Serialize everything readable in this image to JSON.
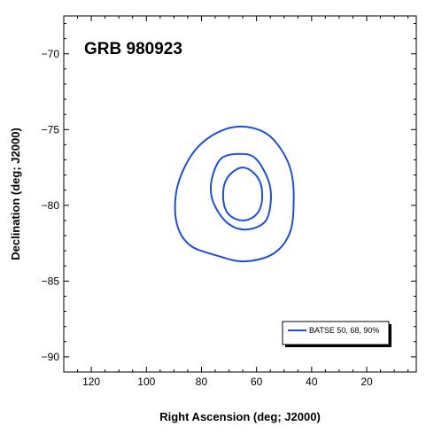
{
  "chart_data": {
    "type": "line",
    "title": "GRB 980923",
    "xlabel": "Right Ascension (deg; J2000)",
    "ylabel": "Declination (deg; J2000)",
    "xlim": [
      130,
      2
    ],
    "ylim": [
      -91,
      -67.5
    ],
    "x_ticks": [
      120,
      100,
      80,
      60,
      40,
      20
    ],
    "y_ticks": [
      -70,
      -75,
      -80,
      -85,
      -90
    ],
    "grid": false,
    "legend": {
      "placement": "bottom-right",
      "entries": [
        "BATSE 50, 68, 90%"
      ]
    },
    "series_color": "#1f4fd8",
    "series": [
      {
        "level": "50%",
        "x": [
          65.0,
          60.8,
          58.3,
          58.2,
          60.6,
          65.0,
          69.5,
          71.9,
          71.8,
          69.3
        ],
        "y": [
          -77.5,
          -77.9,
          -78.7,
          -79.9,
          -80.7,
          -81.0,
          -80.7,
          -79.9,
          -78.7,
          -77.9
        ]
      },
      {
        "level": "68%",
        "x": [
          66.0,
          60.4,
          55.8,
          54.8,
          57.0,
          64.2,
          71.0,
          75.9,
          76.3,
          72.8
        ],
        "y": [
          -76.6,
          -76.9,
          -78.3,
          -79.7,
          -81.1,
          -81.6,
          -81.1,
          -79.7,
          -78.3,
          -76.9
        ]
      },
      {
        "level": "90%",
        "x": [
          66.0,
          57.0,
          51.1,
          47.4,
          46.5,
          47.9,
          54.0,
          64.5,
          74.7,
          84.4,
          89.1,
          88.8,
          83.3,
          75.3
        ],
        "y": [
          -74.8,
          -75.2,
          -76.3,
          -77.8,
          -79.7,
          -81.8,
          -83.2,
          -83.7,
          -83.3,
          -82.6,
          -81.1,
          -78.8,
          -76.6,
          -75.3
        ]
      }
    ]
  }
}
